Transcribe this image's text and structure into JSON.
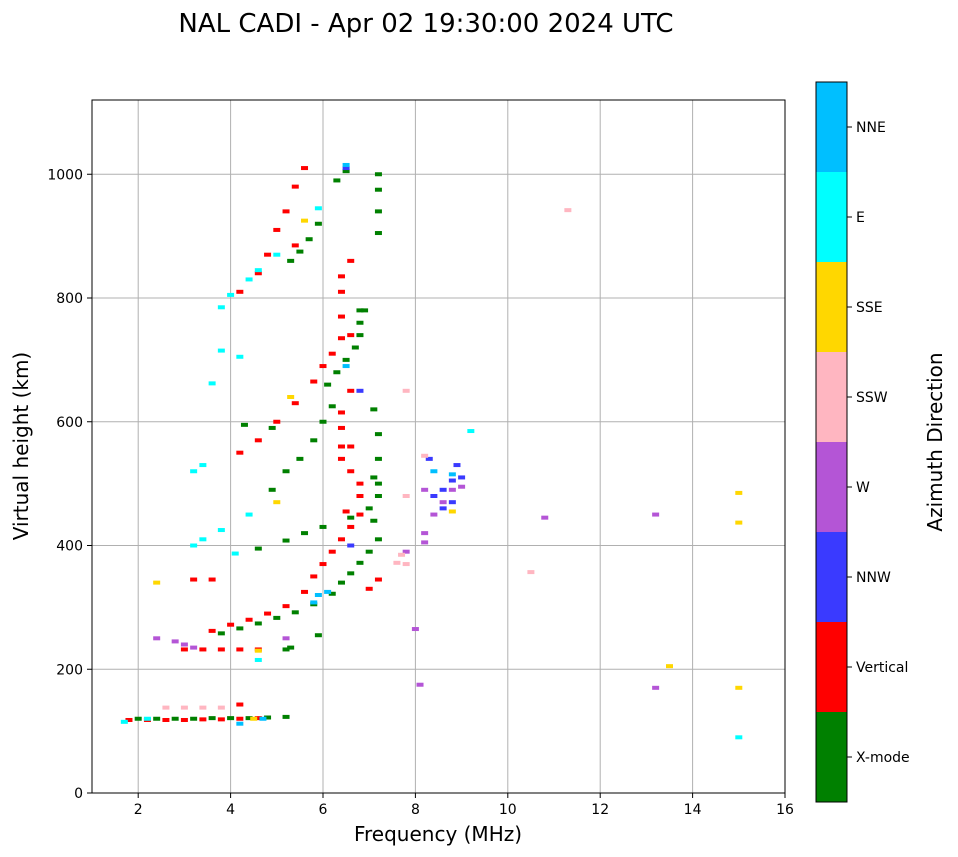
{
  "chart_data": {
    "type": "scatter",
    "title": "NAL CADI - Apr 02 19:30:00 2024 UTC",
    "xlabel": "Frequency (MHz)",
    "ylabel": "Virtual height (km)",
    "xlim": [
      1,
      16
    ],
    "ylim": [
      0,
      1120
    ],
    "xticks": [
      "2",
      "4",
      "6",
      "8",
      "10",
      "12",
      "14",
      "16"
    ],
    "xtick_values": [
      2,
      4,
      6,
      8,
      10,
      12,
      14,
      16
    ],
    "yticks": [
      "0",
      "200",
      "400",
      "600",
      "800",
      "1000"
    ],
    "ytick_values": [
      0,
      200,
      400,
      600,
      800,
      1000
    ],
    "grid": true,
    "colorbar": {
      "title": "Azimuth Direction",
      "categories": [
        {
          "label": "X-mode",
          "color": "#008000"
        },
        {
          "label": "Vertical",
          "color": "#ff0000"
        },
        {
          "label": "NNW",
          "color": "#3a3aff"
        },
        {
          "label": "W",
          "color": "#b455d6"
        },
        {
          "label": "SSW",
          "color": "#ffb6c1"
        },
        {
          "label": "SSE",
          "color": "#ffd700"
        },
        {
          "label": "E",
          "color": "#00ffff"
        },
        {
          "label": "NNE",
          "color": "#00bfff"
        }
      ]
    },
    "series": [
      {
        "name": "X-mode",
        "points": [
          [
            2.0,
            120
          ],
          [
            2.4,
            120
          ],
          [
            2.8,
            120
          ],
          [
            3.2,
            120
          ],
          [
            3.6,
            121
          ],
          [
            4.0,
            121
          ],
          [
            4.4,
            121
          ],
          [
            4.8,
            122
          ],
          [
            5.2,
            123
          ],
          [
            3.8,
            258
          ],
          [
            4.2,
            266
          ],
          [
            4.6,
            274
          ],
          [
            5.0,
            283
          ],
          [
            5.4,
            292
          ],
          [
            5.8,
            305
          ],
          [
            6.2,
            322
          ],
          [
            6.4,
            340
          ],
          [
            6.6,
            355
          ],
          [
            6.8,
            372
          ],
          [
            7.0,
            390
          ],
          [
            7.2,
            410
          ],
          [
            5.3,
            235
          ],
          [
            5.2,
            232
          ],
          [
            5.9,
            255
          ],
          [
            4.6,
            395
          ],
          [
            5.2,
            408
          ],
          [
            5.6,
            420
          ],
          [
            6.0,
            430
          ],
          [
            6.6,
            445
          ],
          [
            7.0,
            460
          ],
          [
            7.2,
            500
          ],
          [
            7.2,
            540
          ],
          [
            7.2,
            580
          ],
          [
            7.1,
            620
          ],
          [
            6.1,
            660
          ],
          [
            6.3,
            680
          ],
          [
            6.5,
            700
          ],
          [
            6.7,
            720
          ],
          [
            6.8,
            740
          ],
          [
            6.8,
            760
          ],
          [
            6.8,
            780
          ],
          [
            4.9,
            490
          ],
          [
            5.2,
            520
          ],
          [
            5.5,
            540
          ],
          [
            5.8,
            570
          ],
          [
            6.0,
            600
          ],
          [
            6.2,
            625
          ],
          [
            7.1,
            510
          ],
          [
            7.2,
            480
          ],
          [
            7.1,
            440
          ],
          [
            4.3,
            595
          ],
          [
            4.9,
            590
          ],
          [
            5.3,
            860
          ],
          [
            5.5,
            875
          ],
          [
            5.7,
            895
          ],
          [
            5.9,
            920
          ],
          [
            6.3,
            990
          ],
          [
            6.5,
            1005
          ],
          [
            7.2,
            905
          ],
          [
            7.2,
            940
          ],
          [
            7.2,
            975
          ],
          [
            7.2,
            1000
          ],
          [
            6.9,
            780
          ]
        ]
      },
      {
        "name": "Vertical",
        "points": [
          [
            1.8,
            118
          ],
          [
            2.2,
            118
          ],
          [
            2.6,
            118
          ],
          [
            3.0,
            118
          ],
          [
            3.4,
            119
          ],
          [
            3.8,
            119
          ],
          [
            4.2,
            120
          ],
          [
            4.6,
            121
          ],
          [
            4.2,
            143
          ],
          [
            3.6,
            262
          ],
          [
            4.0,
            272
          ],
          [
            4.4,
            280
          ],
          [
            4.8,
            290
          ],
          [
            5.2,
            302
          ],
          [
            5.6,
            325
          ],
          [
            5.8,
            350
          ],
          [
            6.0,
            370
          ],
          [
            6.2,
            390
          ],
          [
            6.4,
            410
          ],
          [
            6.6,
            430
          ],
          [
            6.8,
            450
          ],
          [
            7.0,
            330
          ],
          [
            7.2,
            345
          ],
          [
            3.0,
            232
          ],
          [
            3.4,
            232
          ],
          [
            3.8,
            232
          ],
          [
            4.2,
            232
          ],
          [
            4.6,
            232
          ],
          [
            4.2,
            550
          ],
          [
            4.6,
            570
          ],
          [
            5.0,
            600
          ],
          [
            5.4,
            630
          ],
          [
            5.8,
            665
          ],
          [
            6.0,
            690
          ],
          [
            6.2,
            710
          ],
          [
            6.6,
            740
          ],
          [
            6.4,
            590
          ],
          [
            6.4,
            560
          ],
          [
            6.4,
            540
          ],
          [
            6.6,
            520
          ],
          [
            6.8,
            500
          ],
          [
            6.8,
            480
          ],
          [
            6.5,
            455
          ],
          [
            4.2,
            810
          ],
          [
            4.6,
            840
          ],
          [
            4.8,
            870
          ],
          [
            5.0,
            910
          ],
          [
            5.2,
            940
          ],
          [
            5.4,
            980
          ],
          [
            5.6,
            1010
          ],
          [
            6.4,
            770
          ],
          [
            6.4,
            735
          ],
          [
            6.6,
            650
          ],
          [
            6.4,
            615
          ],
          [
            6.6,
            560
          ],
          [
            6.4,
            835
          ],
          [
            6.6,
            860
          ],
          [
            6.4,
            810
          ],
          [
            5.4,
            885
          ],
          [
            3.2,
            345
          ],
          [
            3.6,
            345
          ]
        ]
      },
      {
        "name": "NNW",
        "points": [
          [
            8.4,
            480
          ],
          [
            8.6,
            490
          ],
          [
            8.8,
            505
          ],
          [
            9.0,
            510
          ],
          [
            8.6,
            460
          ],
          [
            8.8,
            470
          ],
          [
            6.5,
            1010
          ],
          [
            6.8,
            650
          ],
          [
            6.6,
            400
          ],
          [
            8.3,
            540
          ],
          [
            8.9,
            530
          ]
        ]
      },
      {
        "name": "W",
        "points": [
          [
            2.4,
            250
          ],
          [
            2.8,
            245
          ],
          [
            3.0,
            240
          ],
          [
            3.2,
            235
          ],
          [
            8.2,
            405
          ],
          [
            8.2,
            420
          ],
          [
            8.4,
            450
          ],
          [
            8.6,
            470
          ],
          [
            8.8,
            490
          ],
          [
            9.0,
            495
          ],
          [
            8.2,
            490
          ],
          [
            8.0,
            265
          ],
          [
            8.1,
            175
          ],
          [
            10.8,
            445
          ],
          [
            13.2,
            450
          ],
          [
            13.2,
            170
          ],
          [
            7.8,
            390
          ],
          [
            5.2,
            250
          ]
        ]
      },
      {
        "name": "SSW",
        "points": [
          [
            2.6,
            138
          ],
          [
            3.0,
            138
          ],
          [
            3.4,
            138
          ],
          [
            3.8,
            138
          ],
          [
            7.8,
            480
          ],
          [
            7.8,
            370
          ],
          [
            7.8,
            650
          ],
          [
            10.5,
            357
          ],
          [
            11.3,
            942
          ],
          [
            8.2,
            545
          ],
          [
            7.6,
            372
          ],
          [
            7.7,
            385
          ]
        ]
      },
      {
        "name": "SSE",
        "points": [
          [
            2.4,
            340
          ],
          [
            4.6,
            230
          ],
          [
            5.0,
            470
          ],
          [
            5.3,
            640
          ],
          [
            13.5,
            205
          ],
          [
            15.0,
            485
          ],
          [
            15.0,
            437
          ],
          [
            15.0,
            170
          ],
          [
            8.8,
            455
          ],
          [
            5.6,
            925
          ],
          [
            4.5,
            120
          ]
        ]
      },
      {
        "name": "E",
        "points": [
          [
            1.7,
            115
          ],
          [
            2.2,
            120
          ],
          [
            3.2,
            400
          ],
          [
            3.4,
            410
          ],
          [
            3.8,
            425
          ],
          [
            4.1,
            387
          ],
          [
            4.4,
            450
          ],
          [
            3.2,
            520
          ],
          [
            3.4,
            530
          ],
          [
            3.6,
            662
          ],
          [
            3.8,
            785
          ],
          [
            4.0,
            805
          ],
          [
            4.4,
            830
          ],
          [
            4.6,
            845
          ],
          [
            5.0,
            870
          ],
          [
            3.8,
            715
          ],
          [
            4.2,
            705
          ],
          [
            4.6,
            215
          ],
          [
            9.2,
            585
          ],
          [
            15.0,
            90
          ],
          [
            5.9,
            945
          ]
        ]
      },
      {
        "name": "NNE",
        "points": [
          [
            4.2,
            112
          ],
          [
            4.7,
            120
          ],
          [
            5.9,
            320
          ],
          [
            6.1,
            325
          ],
          [
            6.5,
            690
          ],
          [
            6.5,
            1015
          ],
          [
            8.4,
            520
          ],
          [
            8.8,
            515
          ],
          [
            5.8,
            308
          ]
        ]
      }
    ]
  }
}
